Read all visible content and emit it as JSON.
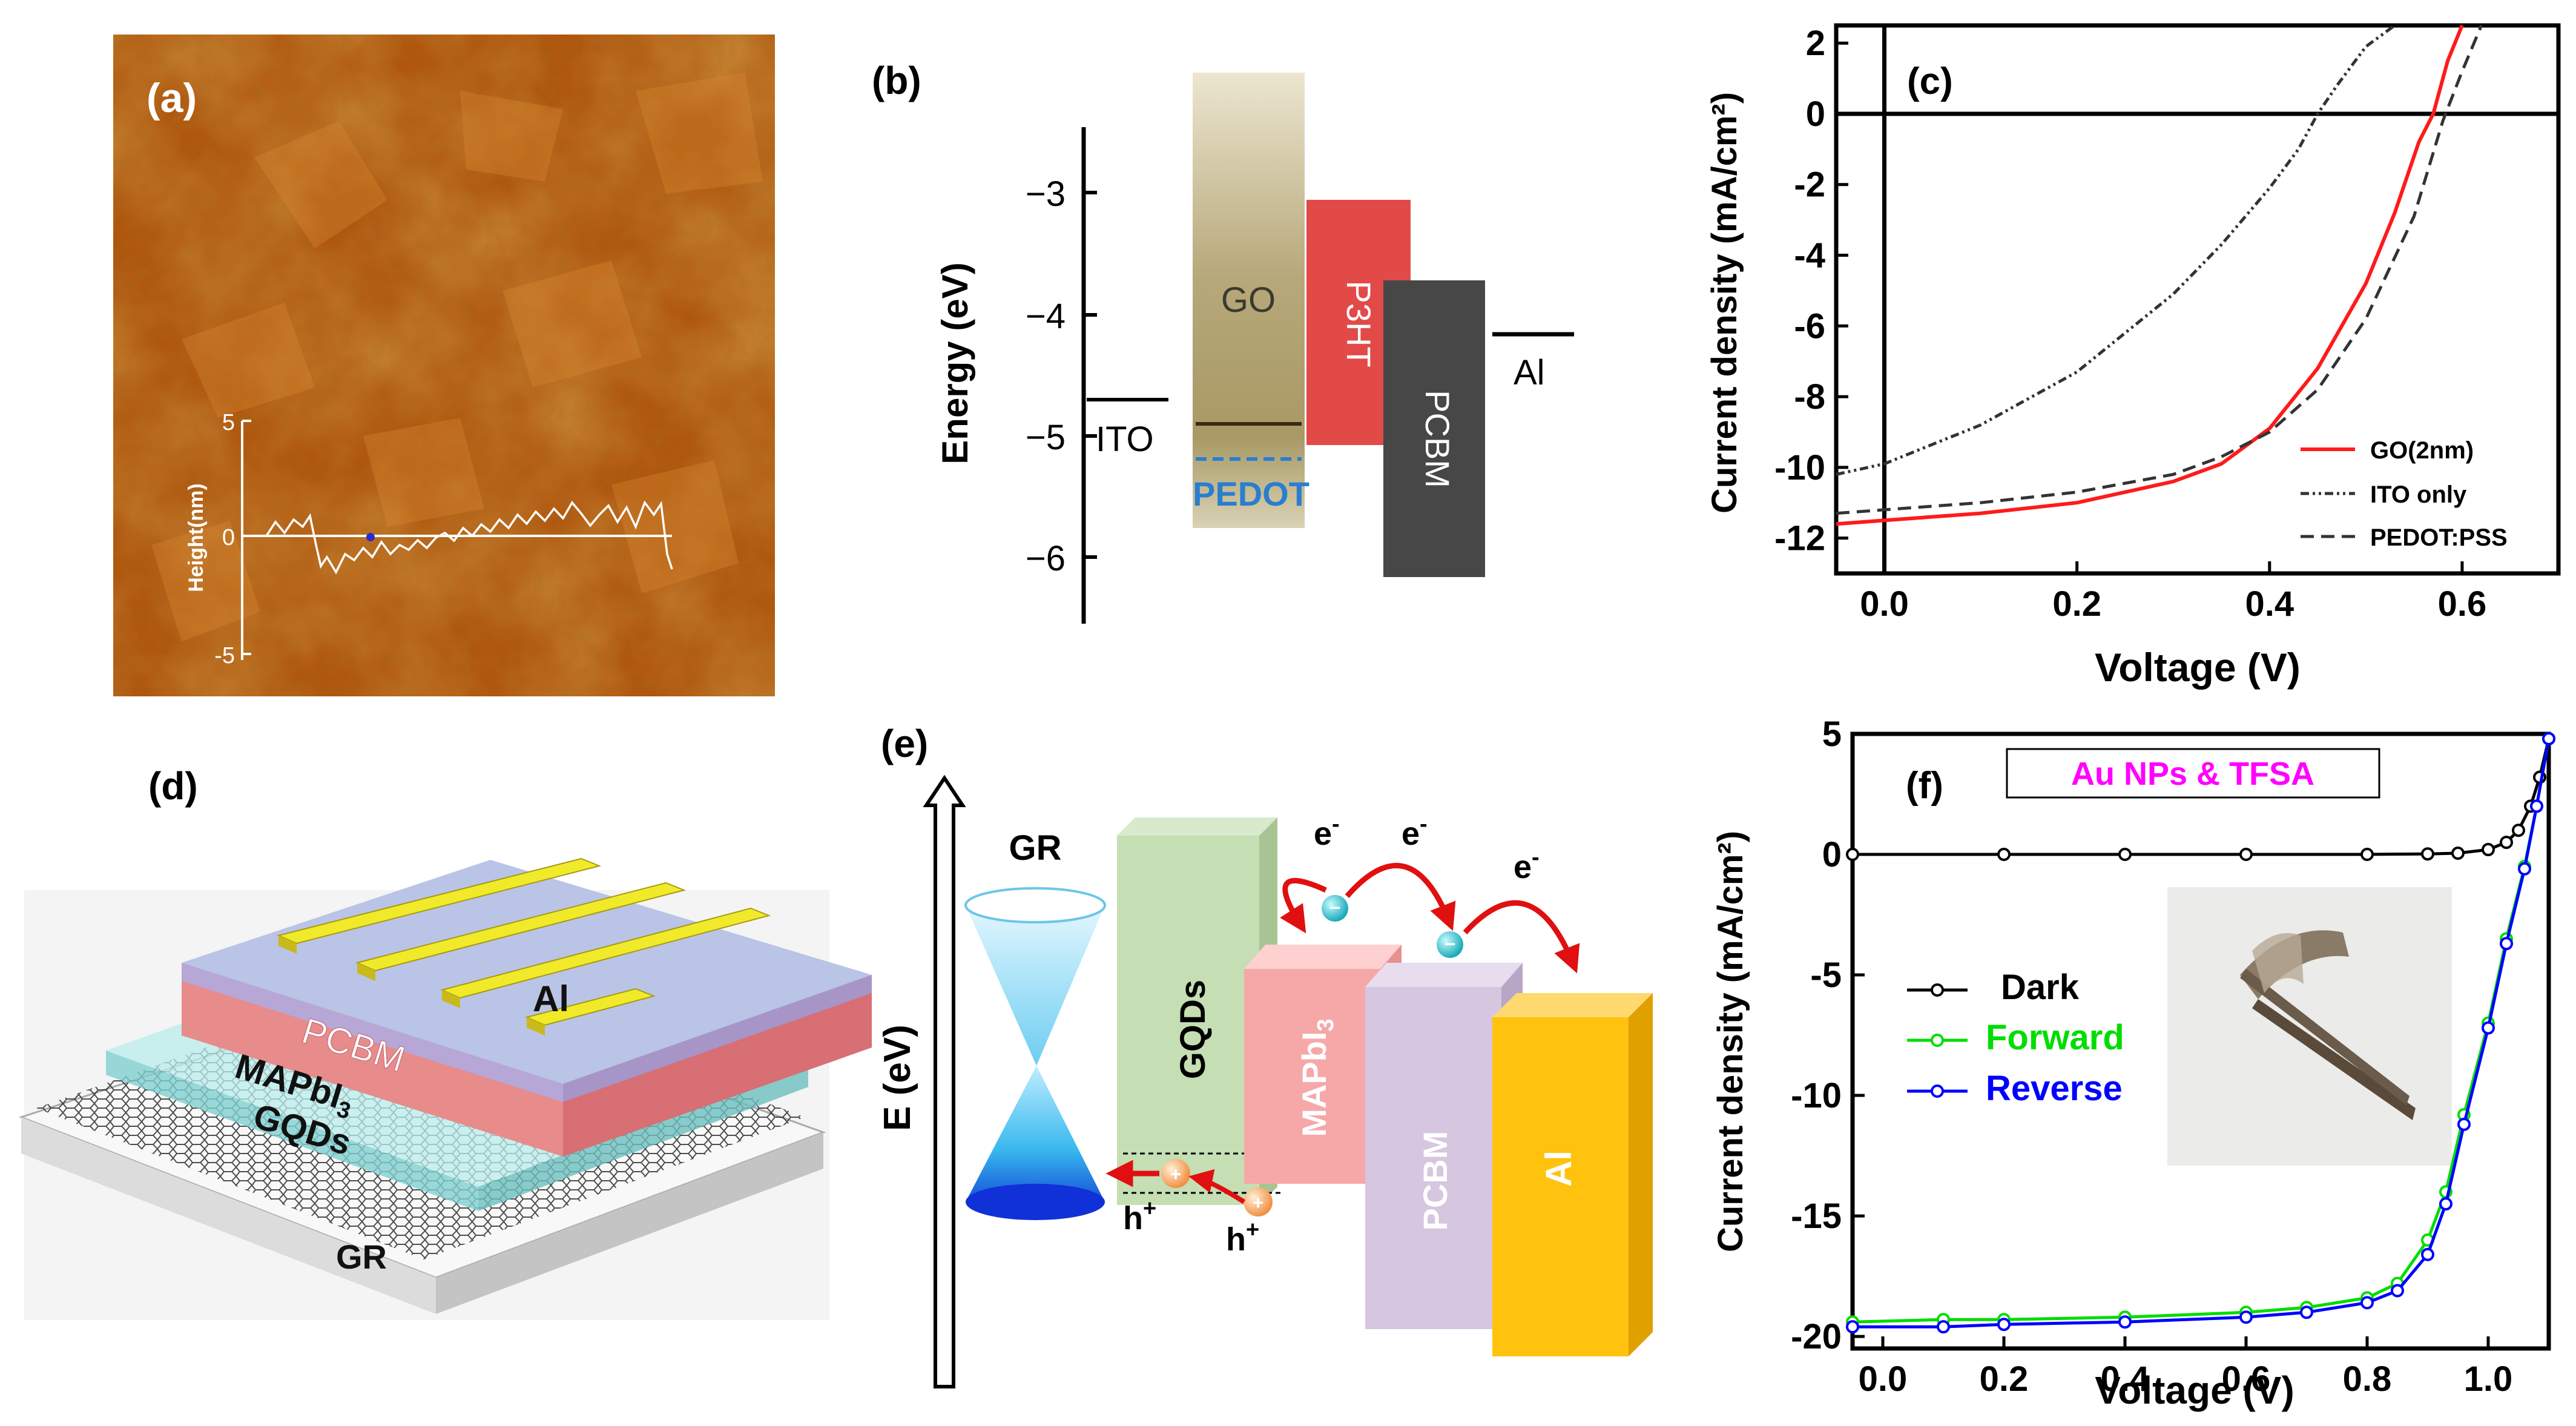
{
  "figure": {
    "panel_a": {
      "label": "(a)",
      "inset": {
        "ylabel": "Height(nm)",
        "yticks": [
          "5",
          "0",
          "-5"
        ]
      }
    },
    "panel_b": {
      "label": "(b)",
      "ylabel": "Energy (eV)",
      "yticks": [
        "−3",
        "−4",
        "−5",
        "−6"
      ],
      "materials": {
        "ito": "ITO",
        "go": "GO",
        "pedot": "PEDOT",
        "p3ht": "P3HT",
        "pcbm": "PCBM",
        "al": "Al"
      }
    },
    "panel_d": {
      "label": "(d)",
      "layers": {
        "al": "Al",
        "pcbm": "PCBM",
        "mapbi": "MAPbI",
        "mapbi_sub": "3",
        "gqds": "GQDs",
        "gr": "GR"
      }
    },
    "panel_e": {
      "label": "(e)",
      "axis_label": "E (eV)",
      "materials": {
        "gr": "GR",
        "gqds": "GQDs",
        "mapbi": "MAPbI",
        "mapbi_sub": "3",
        "pcbm": "PCBM",
        "al": "Al"
      },
      "carriers": {
        "electron": "e",
        "electron_sup": "-",
        "hole": "h",
        "hole_sup": "+"
      }
    },
    "colors": {
      "red": "#ff1a1a",
      "black": "#000000",
      "green": "#00dd00",
      "blue": "#0000ff",
      "magenta": "#ff00ff"
    }
  },
  "chart_data": [
    {
      "panel": "(c)",
      "type": "line",
      "xlabel": "Voltage (V)",
      "ylabel": "Current density (mA/cm²)",
      "xlim": [
        -0.05,
        0.7
      ],
      "ylim": [
        -13,
        2.5
      ],
      "xticks": [
        "0.0",
        "0.2",
        "0.4",
        "0.6"
      ],
      "yticks": [
        "2",
        "0",
        "-2",
        "-4",
        "-6",
        "-8",
        "-10",
        "-12"
      ],
      "legend_placement": "bottom-right",
      "series": [
        {
          "name": "GO(2nm)",
          "color": "#ff1a1a",
          "x": [
            -0.05,
            0.0,
            0.1,
            0.2,
            0.3,
            0.35,
            0.4,
            0.45,
            0.5,
            0.53,
            0.555,
            0.57,
            0.585,
            0.6
          ],
          "y": [
            -11.6,
            -11.5,
            -11.3,
            -11.0,
            -10.4,
            -9.9,
            -8.9,
            -7.2,
            -4.8,
            -2.8,
            -0.8,
            0.0,
            1.5,
            2.7
          ]
        },
        {
          "name": "ITO only",
          "color": "#333333",
          "x": [
            -0.05,
            0.0,
            0.1,
            0.2,
            0.3,
            0.35,
            0.4,
            0.43,
            0.45,
            0.47,
            0.5,
            0.53
          ],
          "y": [
            -10.2,
            -9.9,
            -8.8,
            -7.3,
            -5.1,
            -3.7,
            -2.1,
            -1.0,
            0.0,
            0.8,
            1.9,
            2.7
          ]
        },
        {
          "name": "PEDOT:PSS",
          "color": "#333333",
          "x": [
            -0.05,
            0.0,
            0.1,
            0.2,
            0.3,
            0.35,
            0.4,
            0.45,
            0.5,
            0.55,
            0.58,
            0.6,
            0.62
          ],
          "y": [
            -11.3,
            -11.2,
            -11.0,
            -10.7,
            -10.2,
            -9.7,
            -9.0,
            -7.8,
            -5.8,
            -2.9,
            -0.2,
            1.2,
            2.7
          ]
        }
      ]
    },
    {
      "panel": "(f)",
      "type": "line",
      "title": "Au NPs & TFSA",
      "xlabel": "Voltage (V)",
      "ylabel": "Current density (mA/cm²)",
      "xlim": [
        -0.05,
        1.1
      ],
      "ylim": [
        -20.5,
        5
      ],
      "xticks": [
        "0.0",
        "0.2",
        "0.4",
        "0.6",
        "0.8",
        "1.0"
      ],
      "yticks": [
        "5",
        "0",
        "-5",
        "-10",
        "-15",
        "-20"
      ],
      "legend_placement": "center-left",
      "series": [
        {
          "name": "Dark",
          "color": "#000000",
          "x": [
            -0.05,
            0.2,
            0.4,
            0.6,
            0.8,
            0.9,
            0.95,
            1.0,
            1.03,
            1.05,
            1.07,
            1.085,
            1.1
          ],
          "y": [
            0.0,
            0.0,
            0.0,
            0.0,
            0.0,
            0.02,
            0.05,
            0.2,
            0.5,
            1.0,
            2.0,
            3.2,
            4.8
          ]
        },
        {
          "name": "Forward",
          "color": "#00dd00",
          "x": [
            -0.05,
            0.1,
            0.2,
            0.4,
            0.6,
            0.7,
            0.8,
            0.85,
            0.9,
            0.93,
            0.96,
            1.0,
            1.03,
            1.06,
            1.08,
            1.1
          ],
          "y": [
            -19.4,
            -19.3,
            -19.3,
            -19.2,
            -19.0,
            -18.8,
            -18.4,
            -17.8,
            -16.0,
            -14.0,
            -10.8,
            -7.0,
            -3.5,
            -0.5,
            2.0,
            4.8
          ]
        },
        {
          "name": "Reverse",
          "color": "#0000ff",
          "x": [
            -0.05,
            0.1,
            0.2,
            0.4,
            0.6,
            0.7,
            0.8,
            0.85,
            0.9,
            0.93,
            0.96,
            1.0,
            1.03,
            1.06,
            1.08,
            1.1
          ],
          "y": [
            -19.6,
            -19.6,
            -19.5,
            -19.4,
            -19.2,
            -19.0,
            -18.6,
            -18.1,
            -16.6,
            -14.5,
            -11.2,
            -7.2,
            -3.7,
            -0.6,
            2.0,
            4.8
          ]
        }
      ]
    }
  ]
}
